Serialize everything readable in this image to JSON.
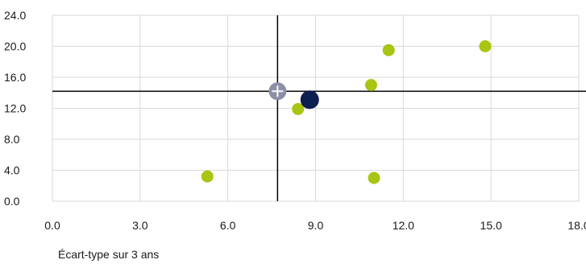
{
  "chart_data": {
    "type": "scatter",
    "title": "",
    "xlabel": "Écart-type sur 3 ans",
    "ylabel": "",
    "xlim": [
      0,
      18
    ],
    "ylim": [
      0,
      24
    ],
    "x_ticks": [
      "0.0",
      "3.0",
      "6.0",
      "9.0",
      "12.0",
      "15.0",
      "18.0"
    ],
    "y_ticks": [
      "0.0",
      "4.0",
      "8.0",
      "12.0",
      "16.0",
      "20.0",
      "24.0"
    ],
    "grid": true,
    "legend": "none",
    "reference_lines": {
      "x": 7.7,
      "y": 14.2
    },
    "series": [
      {
        "color": "#a8c512",
        "marker": "small-circle",
        "points": [
          {
            "x": 5.3,
            "y": 3.2
          },
          {
            "x": 8.4,
            "y": 11.9
          },
          {
            "x": 10.9,
            "y": 15.0
          },
          {
            "x": 11.0,
            "y": 3.0
          },
          {
            "x": 11.5,
            "y": 19.5
          },
          {
            "x": 14.8,
            "y": 20.0
          }
        ]
      },
      {
        "color": "#0d1f4f",
        "marker": "large-circle",
        "points": [
          {
            "x": 8.8,
            "y": 13.1
          }
        ]
      },
      {
        "color": "#8c8fa6",
        "marker": "circle-with-cross",
        "points": [
          {
            "x": 7.7,
            "y": 14.2
          }
        ]
      }
    ]
  }
}
